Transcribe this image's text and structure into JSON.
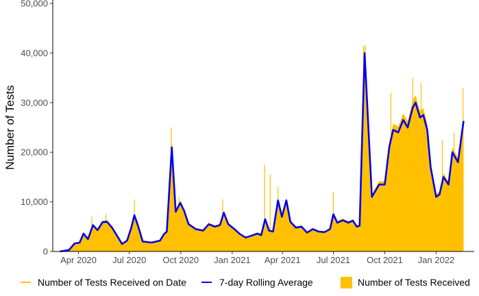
{
  "chart_data": {
    "type": "bar+line",
    "title": "",
    "xlabel": "",
    "ylabel": "Number of Tests",
    "ylim": [
      0,
      50000
    ],
    "xlim": [
      "2020-02-15",
      "2022-03-10"
    ],
    "grid": false,
    "y_ticks": [
      0,
      10000,
      20000,
      30000,
      40000,
      50000
    ],
    "y_tick_labels": [
      "0",
      "10,000",
      "20,000",
      "30,000",
      "40,000",
      "50,000"
    ],
    "x_ticks": [
      "2020-04-01",
      "2020-07-01",
      "2020-10-01",
      "2021-01-01",
      "2021-04-01",
      "2021-07-01",
      "2021-10-01",
      "2022-01-01"
    ],
    "x_tick_labels": [
      "Apr 2020",
      "Jul 2020",
      "Oct 2020",
      "Jan 2021",
      "Apr 2021",
      "Jul 2021",
      "Oct 2021",
      "Jan 2022"
    ],
    "legend": {
      "placement": "bottom",
      "entries": [
        {
          "label": "Number of Tests Received on Date",
          "kind": "line",
          "color": "#FFC000"
        },
        {
          "label": "7-day Rolling Average",
          "kind": "line",
          "color": "#0000EE"
        },
        {
          "label": "Number of Tests Received",
          "kind": "fill",
          "color": "#FFC000"
        }
      ]
    },
    "series": [
      {
        "name": "7-day Rolling Average",
        "color": "#0000EE",
        "points": [
          [
            "2020-02-28",
            0
          ],
          [
            "2020-03-15",
            300
          ],
          [
            "2020-03-25",
            1600
          ],
          [
            "2020-04-03",
            1800
          ],
          [
            "2020-04-10",
            3600
          ],
          [
            "2020-04-18",
            2500
          ],
          [
            "2020-04-27",
            5300
          ],
          [
            "2020-05-05",
            4300
          ],
          [
            "2020-05-14",
            5900
          ],
          [
            "2020-05-22",
            6000
          ],
          [
            "2020-05-31",
            4800
          ],
          [
            "2020-06-10",
            3000
          ],
          [
            "2020-06-18",
            1500
          ],
          [
            "2020-06-27",
            2200
          ],
          [
            "2020-07-05",
            5000
          ],
          [
            "2020-07-10",
            7300
          ],
          [
            "2020-07-17",
            5000
          ],
          [
            "2020-07-25",
            2000
          ],
          [
            "2020-08-10",
            1800
          ],
          [
            "2020-08-25",
            2200
          ],
          [
            "2020-09-01",
            3500
          ],
          [
            "2020-09-06",
            4000
          ],
          [
            "2020-09-15",
            21000
          ],
          [
            "2020-09-22",
            8000
          ],
          [
            "2020-09-30",
            9800
          ],
          [
            "2020-10-07",
            8200
          ],
          [
            "2020-10-15",
            5500
          ],
          [
            "2020-10-28",
            4500
          ],
          [
            "2020-11-10",
            4200
          ],
          [
            "2020-11-20",
            5500
          ],
          [
            "2020-12-01",
            5000
          ],
          [
            "2020-12-10",
            5300
          ],
          [
            "2020-12-17",
            7800
          ],
          [
            "2020-12-25",
            5500
          ],
          [
            "2021-01-05",
            4500
          ],
          [
            "2021-01-15",
            3500
          ],
          [
            "2021-01-25",
            2800
          ],
          [
            "2021-02-05",
            3200
          ],
          [
            "2021-02-15",
            3600
          ],
          [
            "2021-02-22",
            3300
          ],
          [
            "2021-03-01",
            6500
          ],
          [
            "2021-03-08",
            4200
          ],
          [
            "2021-03-15",
            4000
          ],
          [
            "2021-03-24",
            10300
          ],
          [
            "2021-03-31",
            7000
          ],
          [
            "2021-04-08",
            10300
          ],
          [
            "2021-04-15",
            6000
          ],
          [
            "2021-04-25",
            4800
          ],
          [
            "2021-05-05",
            5000
          ],
          [
            "2021-05-15",
            3800
          ],
          [
            "2021-05-25",
            4500
          ],
          [
            "2021-06-05",
            4000
          ],
          [
            "2021-06-15",
            3900
          ],
          [
            "2021-06-25",
            4500
          ],
          [
            "2021-07-01",
            7500
          ],
          [
            "2021-07-08",
            5800
          ],
          [
            "2021-07-18",
            6300
          ],
          [
            "2021-07-28",
            5800
          ],
          [
            "2021-08-05",
            6200
          ],
          [
            "2021-08-12",
            5000
          ],
          [
            "2021-08-17",
            5200
          ],
          [
            "2021-08-22",
            25000
          ],
          [
            "2021-08-26",
            40000
          ],
          [
            "2021-09-08",
            11000
          ],
          [
            "2021-09-21",
            13500
          ],
          [
            "2021-10-01",
            13500
          ],
          [
            "2021-10-09",
            21000
          ],
          [
            "2021-10-16",
            24500
          ],
          [
            "2021-10-25",
            24000
          ],
          [
            "2021-11-03",
            26500
          ],
          [
            "2021-11-11",
            25000
          ],
          [
            "2021-11-20",
            29000
          ],
          [
            "2021-11-25",
            30000
          ],
          [
            "2021-12-03",
            27000
          ],
          [
            "2021-12-09",
            27500
          ],
          [
            "2021-12-16",
            24500
          ],
          [
            "2021-12-22",
            17000
          ],
          [
            "2022-01-01",
            11000
          ],
          [
            "2022-01-07",
            11500
          ],
          [
            "2022-01-14",
            15000
          ],
          [
            "2022-01-23",
            13500
          ],
          [
            "2022-01-30",
            20000
          ],
          [
            "2022-02-09",
            18000
          ],
          [
            "2022-02-19",
            26300
          ]
        ]
      },
      {
        "name": "Number of Tests Received on Date",
        "color": "#FFC000",
        "points": [
          [
            "2020-04-25",
            7000
          ],
          [
            "2020-05-20",
            7500
          ],
          [
            "2020-07-10",
            10500
          ],
          [
            "2020-09-14",
            25000
          ],
          [
            "2020-09-28",
            11000
          ],
          [
            "2020-12-15",
            10500
          ],
          [
            "2021-02-28",
            17500
          ],
          [
            "2021-03-10",
            15500
          ],
          [
            "2021-03-24",
            13000
          ],
          [
            "2021-07-01",
            12000
          ],
          [
            "2021-08-24",
            41500
          ],
          [
            "2021-08-27",
            41500
          ],
          [
            "2021-10-12",
            32000
          ],
          [
            "2021-11-20",
            35000
          ],
          [
            "2021-12-05",
            34000
          ],
          [
            "2022-01-12",
            22500
          ],
          [
            "2022-02-02",
            24000
          ],
          [
            "2022-02-18",
            33000
          ]
        ]
      }
    ]
  }
}
